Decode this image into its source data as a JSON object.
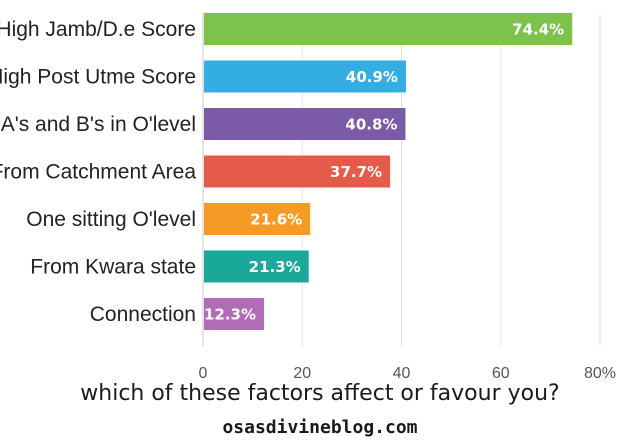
{
  "chart_data": {
    "type": "bar",
    "orientation": "horizontal",
    "title": "which of these factors affect or favour you?",
    "categories": [
      "High Jamb/D.e Score",
      "High Post Utme Score",
      "A's and B's in O'level",
      "From Catchment Area",
      "One sitting O'level",
      "From Kwara state",
      "Connection"
    ],
    "values": [
      74.4,
      40.9,
      40.8,
      37.7,
      21.6,
      21.3,
      12.3
    ],
    "value_labels": [
      "74.4%",
      "40.9%",
      "40.8%",
      "37.7%",
      "21.6%",
      "21.3%",
      "12.3%"
    ],
    "colors": [
      "#7dc24b",
      "#33ade4",
      "#7b5ba8",
      "#e55a4a",
      "#f59b25",
      "#1aa89b",
      "#b16cb7"
    ],
    "xlim": [
      0,
      80
    ],
    "xticks": [
      0,
      20,
      40,
      60,
      80
    ],
    "xtick_labels": [
      "0",
      "20",
      "40",
      "60",
      "80%"
    ],
    "xlabel": "",
    "ylabel": "",
    "grid": true
  },
  "watermark": "osasdivineblog.com"
}
